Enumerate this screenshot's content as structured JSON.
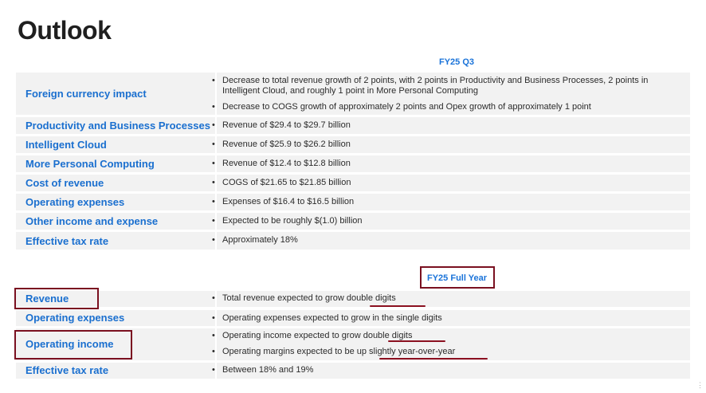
{
  "title": "Outlook",
  "q3": {
    "header": "FY25 Q3",
    "rows": [
      {
        "label": "Foreign currency impact",
        "bullets": [
          "Decrease to total revenue growth of 2 points, with 2 points in Productivity and Business Processes, 2 points in Intelligent Cloud, and roughly 1 point in More Personal Computing",
          "Decrease to COGS growth of approximately 2 points and Opex growth of approximately 1 point"
        ]
      },
      {
        "label": "Productivity and Business Processes",
        "bullets": [
          "Revenue of $29.4 to $29.7 billion"
        ]
      },
      {
        "label": "Intelligent Cloud",
        "bullets": [
          "Revenue of $25.9 to $26.2 billion"
        ]
      },
      {
        "label": "More Personal Computing",
        "bullets": [
          "Revenue of $12.4 to $12.8 billion"
        ]
      },
      {
        "label": "Cost of revenue",
        "bullets": [
          "COGS of $21.65 to $21.85 billion"
        ]
      },
      {
        "label": "Operating expenses",
        "bullets": [
          "Expenses of $16.4 to $16.5 billion"
        ]
      },
      {
        "label": "Other income and expense",
        "bullets": [
          "Expected to be roughly $(1.0) billion"
        ]
      },
      {
        "label": "Effective tax rate",
        "bullets": [
          "Approximately 18%"
        ]
      }
    ]
  },
  "full_year": {
    "header": "FY25 Full Year",
    "rows": [
      {
        "label": "Revenue",
        "bullets": [
          "Total revenue expected to grow double digits"
        ]
      },
      {
        "label": "Operating expenses",
        "bullets": [
          "Operating expenses expected to grow in the single digits"
        ]
      },
      {
        "label": "Operating income",
        "bullets": [
          "Operating income expected to grow double digits",
          "Operating margins expected to be up slightly year-over-year"
        ]
      },
      {
        "label": "Effective tax rate",
        "bullets": [
          "Between 18% and 19%"
        ]
      }
    ]
  },
  "bullet_char": "•",
  "colors": {
    "accent": "#1a6fcf",
    "row_bg": "#f2f2f2",
    "annotation": "#7a1020"
  }
}
